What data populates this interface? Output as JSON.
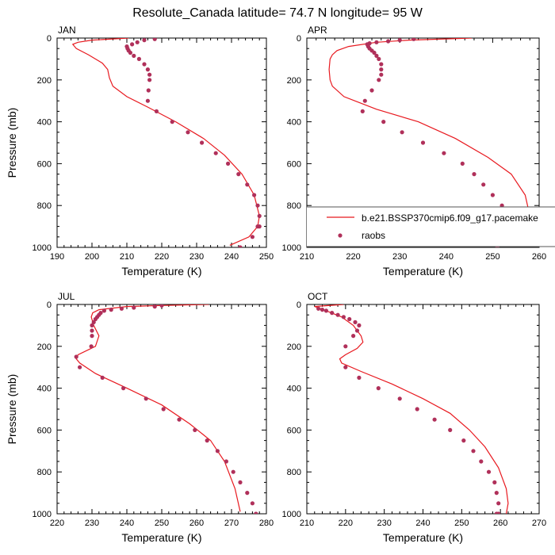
{
  "title": "Resolute_Canada  latitude= 74.7 N longitude= 95 W",
  "colors": {
    "model": "#e8191f",
    "obs": "#b0305a",
    "axis": "#000000"
  },
  "legend": {
    "entries": [
      "b.e21.BSSP370cmip6.f09_g17.pacemake",
      "raobs"
    ]
  },
  "chart_data": [
    {
      "type": "scatter",
      "panel": "JAN",
      "xlabel": "Temperature (K)",
      "ylabel": "Pressure (mb)",
      "xlim": [
        190,
        250
      ],
      "ylim": [
        1000,
        0
      ],
      "xticks": [
        190,
        200,
        210,
        220,
        230,
        240,
        250
      ],
      "yticks": [
        0,
        200,
        400,
        600,
        800,
        1000
      ],
      "series": [
        {
          "name": "b.e21.BSSP370cmip6.f09_g17.pacemake",
          "kind": "line",
          "x": [
            210.5,
            200,
            196,
            194.5,
            195.5,
            199,
            203,
            204.5,
            205,
            206,
            210,
            216,
            224,
            232,
            238,
            243,
            246.5,
            248,
            247.5,
            245,
            239.5
          ],
          "y": [
            0,
            10,
            20,
            30,
            50,
            80,
            120,
            150,
            190,
            230,
            280,
            330,
            400,
            480,
            560,
            650,
            750,
            850,
            900,
            950,
            990
          ]
        },
        {
          "name": "raobs",
          "kind": "points",
          "x": [
            218,
            215,
            213,
            211.5,
            210,
            210.2,
            210.5,
            211,
            212,
            213.5,
            215,
            216,
            216.5,
            216.5,
            216.2,
            216,
            218.5,
            223,
            227.5,
            231.5,
            235.5,
            239,
            242,
            244.5,
            246.5,
            247.5,
            248,
            248,
            247.5,
            246,
            242.5
          ],
          "y": [
            5,
            10,
            20,
            30,
            40,
            50,
            60,
            70,
            85,
            100,
            125,
            150,
            175,
            200,
            250,
            300,
            350,
            400,
            450,
            500,
            550,
            600,
            650,
            700,
            750,
            800,
            850,
            900,
            900,
            950,
            1000
          ]
        }
      ]
    },
    {
      "type": "scatter",
      "panel": "APR",
      "xlabel": "Temperature (K)",
      "ylabel": "",
      "xlim": [
        210,
        260
      ],
      "ylim": [
        1000,
        0
      ],
      "xticks": [
        210,
        220,
        230,
        240,
        250,
        260
      ],
      "yticks": [
        0,
        200,
        400,
        600,
        800,
        1000
      ],
      "series": [
        {
          "name": "b.e21.BSSP370cmip6.f09_g17.pacemake",
          "kind": "line",
          "x": [
            245.5,
            232,
            225,
            219,
            216.5,
            215.5,
            215,
            214.8,
            215,
            215.5,
            218,
            225,
            234,
            242,
            249,
            254,
            257,
            258,
            257.5,
            256.5
          ],
          "y": [
            0,
            10,
            20,
            40,
            60,
            80,
            100,
            150,
            200,
            230,
            280,
            340,
            400,
            480,
            570,
            650,
            750,
            850,
            920,
            980
          ]
        },
        {
          "name": "raobs",
          "kind": "points",
          "x": [
            233,
            230,
            227.5,
            225,
            223.5,
            223,
            223.2,
            223.5,
            224,
            224.5,
            225,
            225.5,
            226,
            226,
            226,
            225.5,
            224,
            222.5,
            222,
            226.5,
            230.5,
            235,
            239.5,
            243.5,
            246,
            248,
            250,
            252,
            253.5,
            254,
            251
          ],
          "y": [
            5,
            10,
            15,
            20,
            25,
            30,
            40,
            50,
            60,
            70,
            85,
            100,
            125,
            150,
            175,
            200,
            250,
            300,
            350,
            400,
            450,
            500,
            550,
            600,
            650,
            700,
            750,
            800,
            850,
            900,
            1000
          ]
        }
      ]
    },
    {
      "type": "scatter",
      "panel": "JUL",
      "xlabel": "Temperature (K)",
      "ylabel": "Pressure (mb)",
      "xlim": [
        220,
        280
      ],
      "ylim": [
        1000,
        0
      ],
      "xticks": [
        220,
        230,
        240,
        250,
        260,
        270,
        280
      ],
      "yticks": [
        0,
        200,
        400,
        600,
        800,
        1000
      ],
      "series": [
        {
          "name": "b.e21.BSSP370cmip6.f09_g17.pacemake",
          "kind": "line",
          "x": [
            263.5,
            250,
            240,
            232,
            230.2,
            229.8,
            230.5,
            232,
            231,
            226,
            225.5,
            226.5,
            231,
            240,
            250,
            258,
            264,
            268,
            271,
            272.5
          ],
          "y": [
            0,
            5,
            10,
            25,
            40,
            60,
            100,
            150,
            200,
            240,
            260,
            280,
            330,
            400,
            480,
            570,
            650,
            750,
            880,
            990
          ]
        },
        {
          "name": "raobs",
          "kind": "points",
          "x": [
            250,
            248,
            242,
            238.5,
            235.5,
            233.5,
            232.5,
            232,
            231.5,
            231,
            230.5,
            230,
            230,
            230,
            229.8,
            225.5,
            226.5,
            233,
            239,
            245.5,
            250.5,
            255,
            259.5,
            263,
            266,
            268.5,
            270.5,
            272.5,
            274.5,
            276,
            277
          ],
          "y": [
            5,
            10,
            15,
            20,
            25,
            30,
            40,
            50,
            60,
            70,
            85,
            100,
            125,
            150,
            200,
            250,
            300,
            350,
            400,
            450,
            500,
            550,
            600,
            650,
            700,
            750,
            800,
            850,
            900,
            950,
            1000
          ]
        }
      ]
    },
    {
      "type": "scatter",
      "panel": "OCT",
      "xlabel": "Temperature (K)",
      "ylabel": "",
      "xlim": [
        210,
        270
      ],
      "ylim": [
        1000,
        0
      ],
      "xticks": [
        210,
        220,
        230,
        240,
        250,
        260,
        270
      ],
      "yticks": [
        0,
        200,
        400,
        600,
        800,
        1000
      ],
      "series": [
        {
          "name": "b.e21.BSSP370cmip6.f09_g17.pacemake",
          "kind": "line",
          "x": [
            219.5,
            212,
            215,
            219,
            222,
            224,
            224.5,
            223,
            220,
            218.5,
            219,
            224,
            232,
            240,
            247,
            252,
            256,
            259.5,
            261.5,
            262,
            261.5
          ],
          "y": [
            0,
            10,
            30,
            60,
            100,
            150,
            180,
            210,
            240,
            260,
            280,
            320,
            380,
            450,
            520,
            600,
            680,
            780,
            880,
            950,
            1000
          ]
        },
        {
          "name": "raobs",
          "kind": "points",
          "x": [
            213,
            214,
            215,
            216.5,
            218,
            219.5,
            221,
            222.5,
            223.5,
            223,
            222,
            220,
            220,
            223.5,
            228.5,
            234,
            238.5,
            243,
            247,
            250.5,
            253,
            255,
            257,
            258.5,
            259,
            259.5,
            259.5,
            259
          ],
          "y": [
            20,
            25,
            30,
            40,
            50,
            60,
            70,
            85,
            100,
            125,
            150,
            200,
            300,
            350,
            400,
            450,
            500,
            550,
            600,
            650,
            700,
            750,
            800,
            850,
            900,
            950,
            1000,
            1000
          ]
        }
      ]
    }
  ]
}
